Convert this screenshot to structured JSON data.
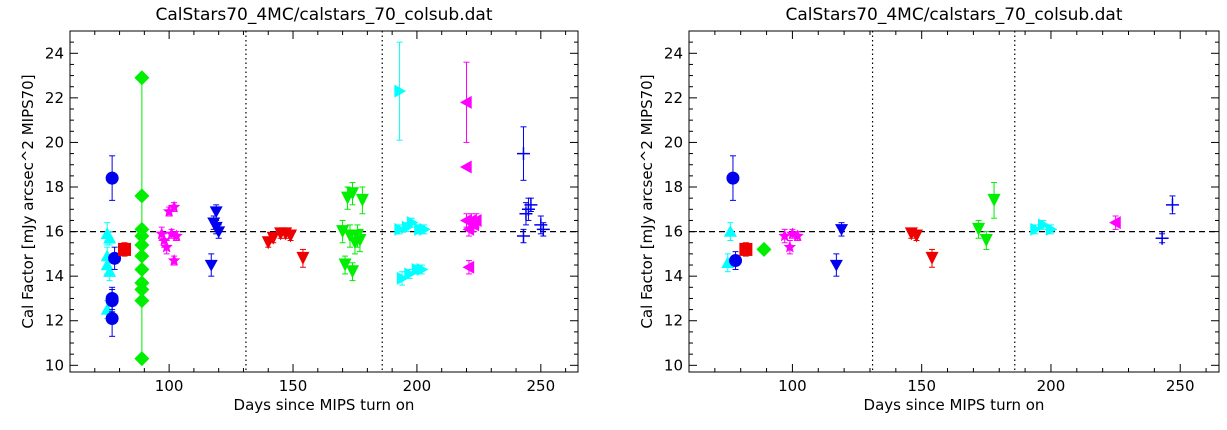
{
  "chart_data": [
    {
      "type": "scatter",
      "title": "CalStars70_4MC/calstars_70_colsub.dat",
      "xlabel": "Days since MIPS turn on",
      "ylabel": "Cal Factor [mJy arcsec^2 MIPS70]",
      "xlim": [
        60,
        265
      ],
      "ylim": [
        9.7,
        25.0
      ],
      "xticks": [
        100,
        150,
        200,
        250
      ],
      "yticks": [
        10,
        12,
        14,
        16,
        18,
        20,
        22,
        24
      ],
      "reference_line": {
        "y": 16,
        "style": "dashed"
      },
      "vertical_lines": [
        {
          "x": 131,
          "style": "dotted"
        },
        {
          "x": 186,
          "style": "dotted"
        }
      ],
      "grid": false,
      "series": [
        {
          "color": "#00ffff",
          "marker": "triangle-up",
          "points": [
            {
              "x": 75,
              "y": 15.9,
              "err": 0.5
            },
            {
              "x": 75,
              "y": 14.5,
              "err": 0.4
            },
            {
              "x": 75,
              "y": 14.9,
              "err": 0.4
            },
            {
              "x": 75,
              "y": 12.5,
              "err": 0.4
            },
            {
              "x": 76,
              "y": 14.2,
              "err": 0.4
            },
            {
              "x": 76,
              "y": 15.7,
              "err": 0.3
            }
          ]
        },
        {
          "color": "#0000ee",
          "marker": "circle",
          "points": [
            {
              "x": 77,
              "y": 18.4,
              "err": 1.0
            },
            {
              "x": 77,
              "y": 13.0,
              "err": 0.5
            },
            {
              "x": 77,
              "y": 12.1,
              "err": 0.8
            },
            {
              "x": 78,
              "y": 14.8,
              "err": 0.5
            },
            {
              "x": 77,
              "y": 12.9,
              "err": 0.5
            }
          ]
        },
        {
          "color": "#ee0000",
          "marker": "square",
          "points": [
            {
              "x": 82,
              "y": 15.2,
              "err": 0.3
            }
          ]
        },
        {
          "color": "#00ee00",
          "marker": "diamond",
          "points": [
            {
              "x": 89,
              "y": 22.9,
              "err": 0
            },
            {
              "x": 89,
              "y": 17.6,
              "err": 0
            },
            {
              "x": 89,
              "y": 16.1,
              "err": 0
            },
            {
              "x": 89,
              "y": 15.8,
              "err": 0
            },
            {
              "x": 89,
              "y": 15.4,
              "err": 0
            },
            {
              "x": 89,
              "y": 14.9,
              "err": 0
            },
            {
              "x": 89,
              "y": 14.3,
              "err": 0
            },
            {
              "x": 89,
              "y": 13.7,
              "err": 0
            },
            {
              "x": 89,
              "y": 13.4,
              "err": 0
            },
            {
              "x": 89,
              "y": 12.9,
              "err": 0
            },
            {
              "x": 89,
              "y": 10.3,
              "err": 0
            }
          ]
        },
        {
          "color": "#ff00ff",
          "marker": "star",
          "points": [
            {
              "x": 97,
              "y": 15.9,
              "err": 0.3
            },
            {
              "x": 98,
              "y": 15.6,
              "err": 0.3
            },
            {
              "x": 99,
              "y": 15.3,
              "err": 0.3
            },
            {
              "x": 100,
              "y": 16.9,
              "err": 0.2
            },
            {
              "x": 101,
              "y": 15.9,
              "err": 0.2
            },
            {
              "x": 102,
              "y": 14.7,
              "err": 0.2
            },
            {
              "x": 102,
              "y": 17.1,
              "err": 0.2
            },
            {
              "x": 103,
              "y": 15.8,
              "err": 0.2
            }
          ]
        },
        {
          "color": "#0000ee",
          "marker": "triangle-down",
          "points": [
            {
              "x": 117,
              "y": 14.5,
              "err": 0.5
            },
            {
              "x": 118,
              "y": 16.4,
              "err": 0.3
            },
            {
              "x": 119,
              "y": 16.9,
              "err": 0.3
            },
            {
              "x": 119,
              "y": 16.2,
              "err": 0.3
            },
            {
              "x": 120,
              "y": 16.0,
              "err": 0.3
            }
          ]
        },
        {
          "color": "#ee0000",
          "marker": "flag",
          "points": [
            {
              "x": 140,
              "y": 15.5,
              "err": 0.2
            },
            {
              "x": 142,
              "y": 15.7,
              "err": 0.2
            },
            {
              "x": 145,
              "y": 15.9,
              "err": 0.2
            },
            {
              "x": 147,
              "y": 15.9,
              "err": 0.2
            },
            {
              "x": 149,
              "y": 15.8,
              "err": 0.2
            },
            {
              "x": 154,
              "y": 14.8,
              "err": 0.4
            }
          ]
        },
        {
          "color": "#00ee00",
          "marker": "flag",
          "points": [
            {
              "x": 170,
              "y": 16.0,
              "err": 0.5
            },
            {
              "x": 171,
              "y": 14.5,
              "err": 0.4
            },
            {
              "x": 172,
              "y": 17.5,
              "err": 0.5
            },
            {
              "x": 173,
              "y": 15.8,
              "err": 0.5
            },
            {
              "x": 174,
              "y": 14.2,
              "err": 0.4
            },
            {
              "x": 174,
              "y": 17.7,
              "err": 0.5
            },
            {
              "x": 175,
              "y": 15.5,
              "err": 0.5
            },
            {
              "x": 176,
              "y": 15.8,
              "err": 0.5
            },
            {
              "x": 177,
              "y": 15.6,
              "err": 0.5
            },
            {
              "x": 178,
              "y": 17.4,
              "err": 0.6
            }
          ]
        },
        {
          "color": "#00ffff",
          "marker": "triangle-right",
          "points": [
            {
              "x": 193,
              "y": 22.3,
              "err": 2.2
            },
            {
              "x": 193,
              "y": 16.1,
              "err": 0.2
            },
            {
              "x": 194,
              "y": 13.9,
              "err": 0.3
            },
            {
              "x": 196,
              "y": 16.2,
              "err": 0.2
            },
            {
              "x": 197,
              "y": 14.1,
              "err": 0.2
            },
            {
              "x": 198,
              "y": 16.4,
              "err": 0.2
            },
            {
              "x": 200,
              "y": 14.3,
              "err": 0.2
            },
            {
              "x": 201,
              "y": 16.1,
              "err": 0.2
            },
            {
              "x": 202,
              "y": 14.3,
              "err": 0.2
            },
            {
              "x": 203,
              "y": 16.1,
              "err": 0.2
            }
          ]
        },
        {
          "color": "#ff00ff",
          "marker": "triangle-left",
          "points": [
            {
              "x": 220,
              "y": 21.8,
              "err": 1.8
            },
            {
              "x": 220,
              "y": 18.9,
              "err": 0
            },
            {
              "x": 220,
              "y": 16.5,
              "err": 0.3
            },
            {
              "x": 221,
              "y": 16.1,
              "err": 0.3
            },
            {
              "x": 221,
              "y": 14.4,
              "err": 0.3
            },
            {
              "x": 222,
              "y": 16.5,
              "err": 0.3
            },
            {
              "x": 223,
              "y": 16.3,
              "err": 0.3
            },
            {
              "x": 224,
              "y": 16.5,
              "err": 0.3
            }
          ]
        },
        {
          "color": "#0000ee",
          "marker": "plus",
          "points": [
            {
              "x": 243,
              "y": 15.8,
              "err": 0.3
            },
            {
              "x": 243,
              "y": 19.5,
              "err": 1.2
            },
            {
              "x": 244,
              "y": 16.8,
              "err": 0.5
            },
            {
              "x": 245,
              "y": 17.0,
              "err": 0.5
            },
            {
              "x": 246,
              "y": 17.2,
              "err": 0.3
            },
            {
              "x": 250,
              "y": 16.3,
              "err": 0.4
            },
            {
              "x": 251,
              "y": 16.1,
              "err": 0.3
            }
          ]
        }
      ]
    },
    {
      "type": "scatter",
      "title": "CalStars70_4MC/calstars_70_colsub.dat",
      "xlabel": "Days since MIPS turn on",
      "ylabel": "Cal Factor [mJy arcsec^2 MIPS70]",
      "xlim": [
        60,
        265
      ],
      "ylim": [
        9.7,
        25.0
      ],
      "xticks": [
        100,
        150,
        200,
        250
      ],
      "yticks": [
        10,
        12,
        14,
        16,
        18,
        20,
        22,
        24
      ],
      "reference_line": {
        "y": 16,
        "style": "dashed"
      },
      "vertical_lines": [
        {
          "x": 131,
          "style": "dotted"
        },
        {
          "x": 186,
          "style": "dotted"
        }
      ],
      "grid": false,
      "series": [
        {
          "color": "#00ffff",
          "marker": "triangle-up",
          "points": [
            {
              "x": 75,
              "y": 14.6,
              "err": 0.4
            },
            {
              "x": 76,
              "y": 16.0,
              "err": 0.4
            }
          ]
        },
        {
          "color": "#0000ee",
          "marker": "circle",
          "points": [
            {
              "x": 77,
              "y": 18.4,
              "err": 1.0
            },
            {
              "x": 78,
              "y": 14.7,
              "err": 0.4
            }
          ]
        },
        {
          "color": "#ee0000",
          "marker": "square",
          "points": [
            {
              "x": 82,
              "y": 15.2,
              "err": 0.3
            }
          ]
        },
        {
          "color": "#00ee00",
          "marker": "diamond",
          "points": [
            {
              "x": 89,
              "y": 15.2,
              "err": 0
            }
          ]
        },
        {
          "color": "#ff00ff",
          "marker": "star",
          "points": [
            {
              "x": 97,
              "y": 15.8,
              "err": 0.3
            },
            {
              "x": 99,
              "y": 15.3,
              "err": 0.3
            },
            {
              "x": 100,
              "y": 15.9,
              "err": 0.2
            },
            {
              "x": 102,
              "y": 15.8,
              "err": 0.2
            }
          ]
        },
        {
          "color": "#0000ee",
          "marker": "triangle-down",
          "points": [
            {
              "x": 117,
              "y": 14.5,
              "err": 0.5
            },
            {
              "x": 119,
              "y": 16.1,
              "err": 0.3
            }
          ]
        },
        {
          "color": "#ee0000",
          "marker": "flag",
          "points": [
            {
              "x": 146,
              "y": 15.9,
              "err": 0.2
            },
            {
              "x": 148,
              "y": 15.8,
              "err": 0.2
            },
            {
              "x": 154,
              "y": 14.8,
              "err": 0.4
            }
          ]
        },
        {
          "color": "#00ee00",
          "marker": "flag",
          "points": [
            {
              "x": 172,
              "y": 16.1,
              "err": 0.4
            },
            {
              "x": 175,
              "y": 15.6,
              "err": 0.4
            },
            {
              "x": 178,
              "y": 17.4,
              "err": 0.8
            }
          ]
        },
        {
          "color": "#00ffff",
          "marker": "triangle-right",
          "points": [
            {
              "x": 194,
              "y": 16.1,
              "err": 0.2
            },
            {
              "x": 197,
              "y": 16.3,
              "err": 0.2
            },
            {
              "x": 200,
              "y": 16.1,
              "err": 0.2
            }
          ]
        },
        {
          "color": "#ff00ff",
          "marker": "triangle-left",
          "points": [
            {
              "x": 225,
              "y": 16.4,
              "err": 0.3
            }
          ]
        },
        {
          "color": "#0000ee",
          "marker": "plus",
          "points": [
            {
              "x": 243,
              "y": 15.7,
              "err": 0.2
            },
            {
              "x": 247,
              "y": 17.2,
              "err": 0.4
            }
          ]
        }
      ]
    }
  ]
}
